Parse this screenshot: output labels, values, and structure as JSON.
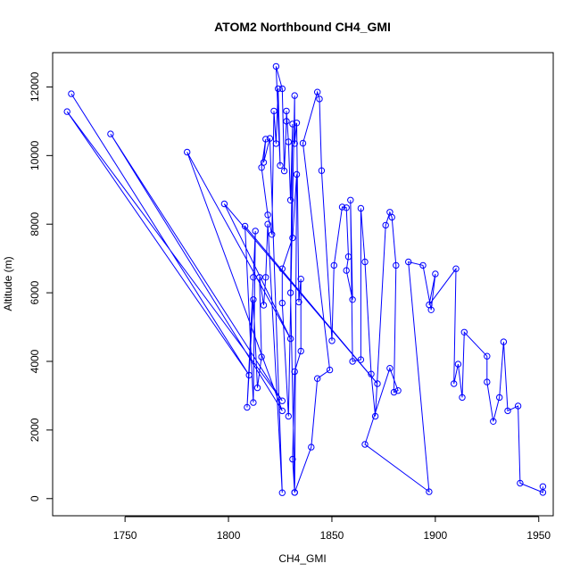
{
  "chart_data": {
    "type": "line",
    "title": "ATOM2 Northbound CH4_GMI",
    "xlabel": "CH4_GMI",
    "ylabel": "Altitude (m)",
    "xlim": [
      1715,
      1957
    ],
    "ylim": [
      -500,
      13000
    ],
    "xticks": [
      1750,
      1800,
      1850,
      1900,
      1950
    ],
    "yticks": [
      0,
      2000,
      4000,
      6000,
      8000,
      10000,
      12000
    ],
    "grid": false,
    "marker": "open-circle",
    "colors": {
      "series": "#0000ff",
      "axis": "#000000",
      "background": "#ffffff"
    },
    "series": [
      {
        "points": [
          [
            1724,
            11800
          ],
          [
            1810,
            3600
          ],
          [
            1722,
            11280
          ],
          [
            1826,
            2850
          ],
          [
            1743,
            10630
          ],
          [
            1826,
            2560
          ],
          [
            1780,
            10100
          ],
          [
            1830,
            4660
          ],
          [
            1798,
            8590
          ],
          [
            1872,
            3350
          ],
          [
            1808,
            7940
          ],
          [
            1812,
            2800
          ],
          [
            1813,
            7800
          ],
          [
            1812,
            6450
          ],
          [
            1809,
            2660
          ],
          [
            1812,
            5800
          ],
          [
            1814,
            3230
          ],
          [
            1816,
            4130
          ],
          [
            1815,
            6450
          ],
          [
            1817,
            5640
          ],
          [
            1818,
            6450
          ],
          [
            1819,
            8000
          ],
          [
            1826,
            170
          ],
          [
            1820,
            10500
          ],
          [
            1817,
            9800
          ],
          [
            1818,
            10480
          ],
          [
            1816,
            9650
          ],
          [
            1819,
            8270
          ],
          [
            1821,
            7700
          ],
          [
            1822,
            11300
          ],
          [
            1823,
            10350
          ],
          [
            1824,
            11950
          ],
          [
            1825,
            9710
          ],
          [
            1823,
            12600
          ],
          [
            1826,
            11950
          ],
          [
            1827,
            9550
          ],
          [
            1828,
            11000
          ],
          [
            1828,
            11300
          ],
          [
            1829,
            10400
          ],
          [
            1830,
            8700
          ],
          [
            1831,
            10920
          ],
          [
            1830,
            6000
          ],
          [
            1832,
            180
          ],
          [
            1833,
            9450
          ],
          [
            1831,
            7600
          ],
          [
            1826,
            6700
          ],
          [
            1826,
            5700
          ],
          [
            1829,
            2400
          ],
          [
            1832,
            11750
          ],
          [
            1832,
            10350
          ],
          [
            1833,
            10950
          ],
          [
            1834,
            5730
          ],
          [
            1835,
            6400
          ],
          [
            1835,
            4300
          ],
          [
            1832,
            3700
          ],
          [
            1831,
            1150
          ],
          [
            1832,
            180
          ],
          [
            1840,
            1500
          ],
          [
            1843,
            3500
          ],
          [
            1849,
            3750
          ],
          [
            1836,
            10360
          ],
          [
            1843,
            11850
          ],
          [
            1844,
            11650
          ],
          [
            1845,
            9560
          ],
          [
            1850,
            4600
          ],
          [
            1851,
            6800
          ],
          [
            1855,
            8500
          ],
          [
            1857,
            8480
          ],
          [
            1858,
            7050
          ],
          [
            1857,
            6650
          ],
          [
            1860,
            5800
          ],
          [
            1859,
            8700
          ],
          [
            1860,
            4000
          ],
          [
            1864,
            4050
          ],
          [
            1864,
            8460
          ],
          [
            1866,
            6900
          ],
          [
            1869,
            3630
          ],
          [
            1871,
            2400
          ],
          [
            1876,
            7970
          ],
          [
            1878,
            8350
          ],
          [
            1879,
            8200
          ],
          [
            1881,
            6800
          ],
          [
            1880,
            3100
          ],
          [
            1882,
            3150
          ],
          [
            1878,
            3800
          ],
          [
            1866,
            1580
          ],
          [
            1897,
            200
          ],
          [
            1887,
            6900
          ],
          [
            1894,
            6800
          ],
          [
            1898,
            5500
          ],
          [
            1900,
            6550
          ],
          [
            1897,
            5650
          ],
          [
            1910,
            6700
          ],
          [
            1909,
            3350
          ],
          [
            1911,
            3920
          ],
          [
            1913,
            2950
          ],
          [
            1914,
            4850
          ],
          [
            1925,
            4150
          ],
          [
            1925,
            3400
          ],
          [
            1928,
            2250
          ],
          [
            1931,
            2950
          ],
          [
            1933,
            4570
          ],
          [
            1935,
            2560
          ],
          [
            1940,
            2700
          ],
          [
            1941,
            450
          ],
          [
            1952,
            180
          ],
          [
            1952,
            350
          ]
        ]
      }
    ]
  }
}
